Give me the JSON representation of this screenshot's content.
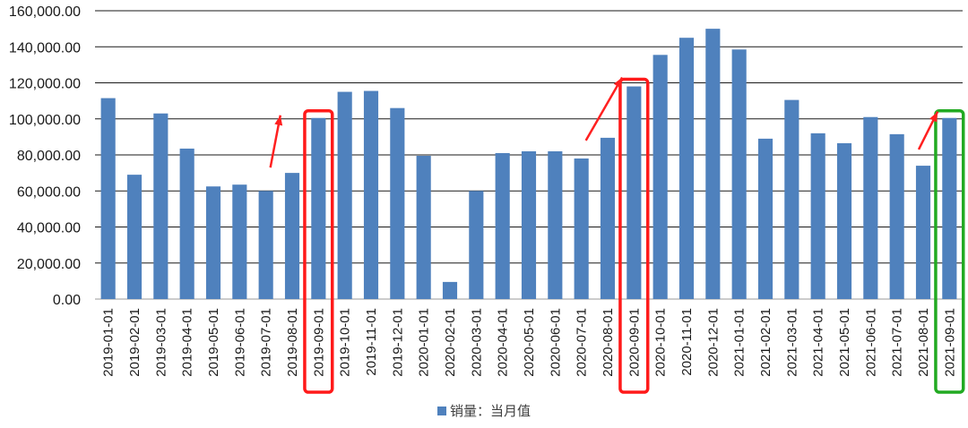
{
  "chart_data": {
    "type": "bar",
    "categories": [
      "2019-01-01",
      "2019-02-01",
      "2019-03-01",
      "2019-04-01",
      "2019-05-01",
      "2019-06-01",
      "2019-07-01",
      "2019-08-01",
      "2019-09-01",
      "2019-10-01",
      "2019-11-01",
      "2019-12-01",
      "2020-01-01",
      "2020-02-01",
      "2020-03-01",
      "2020-04-01",
      "2020-05-01",
      "2020-06-01",
      "2020-07-01",
      "2020-08-01",
      "2020-09-01",
      "2020-10-01",
      "2020-11-01",
      "2020-12-01",
      "2021-01-01",
      "2021-02-01",
      "2021-03-01",
      "2021-04-01",
      "2021-05-01",
      "2021-06-01",
      "2021-07-01",
      "2021-08-01",
      "2021-09-01"
    ],
    "series": [
      {
        "name": "销量：当月值",
        "values": [
          111500,
          69000,
          103000,
          83500,
          62500,
          63500,
          60000,
          70000,
          100500,
          115000,
          115500,
          106000,
          79500,
          9500,
          60000,
          81000,
          82000,
          82000,
          78000,
          89500,
          118000,
          135500,
          145000,
          150000,
          138500,
          89000,
          110500,
          92000,
          86500,
          101000,
          91500,
          74000,
          100500
        ]
      }
    ],
    "ylim": [
      0,
      160000
    ],
    "yticks": [
      0,
      20000,
      40000,
      60000,
      80000,
      100000,
      120000,
      140000,
      160000
    ],
    "ytick_labels": [
      "0.00",
      "20,000.00",
      "40,000.00",
      "60,000.00",
      "80,000.00",
      "100,000.00",
      "120,000.00",
      "140,000.00",
      "160,000.00"
    ],
    "grid": true,
    "legend_position": "bottom",
    "bar_color": "#4f81bd",
    "highlights": [
      {
        "category": "2019-09-01",
        "color": "#ff1a1a"
      },
      {
        "category": "2020-09-01",
        "color": "#ff1a1a"
      },
      {
        "category": "2021-09-01",
        "color": "#22aa22"
      }
    ],
    "arrow_color": "#ff2020"
  }
}
